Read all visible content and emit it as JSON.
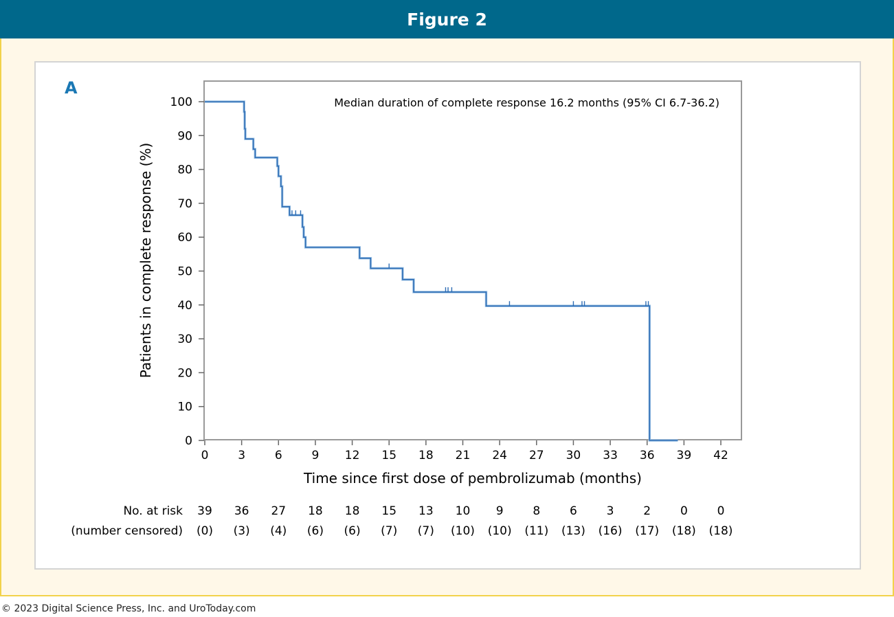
{
  "header": {
    "title": "Figure 2"
  },
  "panel": {
    "label": "A"
  },
  "footer": {
    "copyright": "© 2023 Digital Science Press, Inc. and UroToday.com"
  },
  "colors": {
    "header_bg": "#00688b",
    "frame_border": "#f2d24b",
    "frame_bg": "#fff8e8",
    "line": "#2e6db4",
    "panel_label": "#1a78b4"
  },
  "chart_data": {
    "type": "line",
    "title": "",
    "annotation": "Median duration of complete response 16.2 months (95% CI 6.7-36.2)",
    "xlabel": "Time since first dose of pembrolizumab (months)",
    "ylabel": "Patients in complete response (%)",
    "xlim": [
      0,
      42
    ],
    "ylim": [
      0,
      100
    ],
    "x_ticks": [
      "0",
      "3",
      "6",
      "9",
      "12",
      "15",
      "18",
      "21",
      "24",
      "27",
      "30",
      "33",
      "36",
      "39",
      "42"
    ],
    "y_ticks": [
      "0",
      "10",
      "20",
      "30",
      "40",
      "50",
      "60",
      "70",
      "80",
      "90",
      "100"
    ],
    "grid": false,
    "series": [
      {
        "step_points": [
          [
            0,
            100
          ],
          [
            3.2,
            100
          ],
          [
            3.2,
            97
          ],
          [
            3.25,
            92
          ],
          [
            3.3,
            89
          ],
          [
            3.9,
            89
          ],
          [
            3.95,
            86
          ],
          [
            4.1,
            83.5
          ],
          [
            5.8,
            83.5
          ],
          [
            5.9,
            81
          ],
          [
            6.0,
            78
          ],
          [
            6.2,
            75
          ],
          [
            6.3,
            69
          ],
          [
            6.8,
            69
          ],
          [
            6.9,
            66.5
          ],
          [
            7.9,
            66.5
          ],
          [
            7.95,
            63
          ],
          [
            8.05,
            60
          ],
          [
            8.2,
            57
          ],
          [
            12.6,
            57
          ],
          [
            12.6,
            53.8
          ],
          [
            13.5,
            53.8
          ],
          [
            13.5,
            50.8
          ],
          [
            16.1,
            50.8
          ],
          [
            16.1,
            47.5
          ],
          [
            17,
            47.5
          ],
          [
            17,
            43.8
          ],
          [
            22.9,
            43.8
          ],
          [
            22.9,
            39.7
          ],
          [
            36.2,
            39.7
          ],
          [
            36.2,
            0
          ],
          [
            38.5,
            0
          ]
        ],
        "censor_x": [
          6.9,
          7.1,
          7.4,
          7.8,
          15,
          19.6,
          19.8,
          20.1,
          24.8,
          30,
          30.7,
          30.9,
          35.9,
          36.1
        ]
      }
    ],
    "risk_table": {
      "row_labels": [
        "No. at risk",
        "(number censored)"
      ],
      "at_risk": [
        "39",
        "36",
        "27",
        "18",
        "18",
        "15",
        "13",
        "10",
        "9",
        "8",
        "6",
        "3",
        "2",
        "0",
        "0"
      ],
      "censored": [
        "(0)",
        "(3)",
        "(4)",
        "(6)",
        "(6)",
        "(7)",
        "(7)",
        "(10)",
        "(10)",
        "(11)",
        "(13)",
        "(16)",
        "(17)",
        "(18)",
        "(18)"
      ]
    }
  }
}
